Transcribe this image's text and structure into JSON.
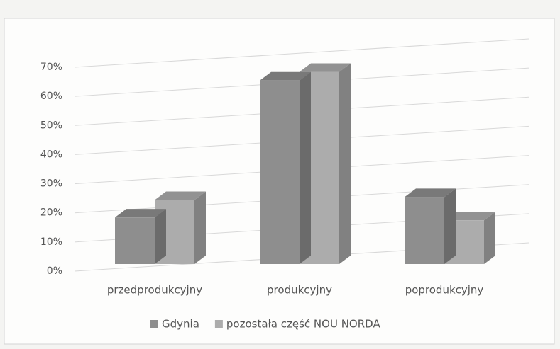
{
  "chart_data": {
    "type": "bar3d",
    "categories": [
      "przedprodukcyjny",
      "produkcyjny",
      "poprodukcyjny"
    ],
    "series": [
      {
        "name": "Gdynia",
        "color": "#8e8e8e",
        "values": [
          16,
          63,
          23
        ]
      },
      {
        "name": "pozostała część NOU NORDA",
        "color": "#acacac",
        "values": [
          22,
          66,
          15
        ]
      }
    ],
    "ylim": [
      0,
      70
    ],
    "yticks": [
      {
        "value": 0,
        "label": "0%"
      },
      {
        "value": 10,
        "label": "10%"
      },
      {
        "value": 20,
        "label": "20%"
      },
      {
        "value": 30,
        "label": "30%"
      },
      {
        "value": 40,
        "label": "40%"
      },
      {
        "value": 50,
        "label": "50%"
      },
      {
        "value": 60,
        "label": "60%"
      },
      {
        "value": 70,
        "label": "70%"
      }
    ],
    "grid": true,
    "legend": "bottom"
  }
}
